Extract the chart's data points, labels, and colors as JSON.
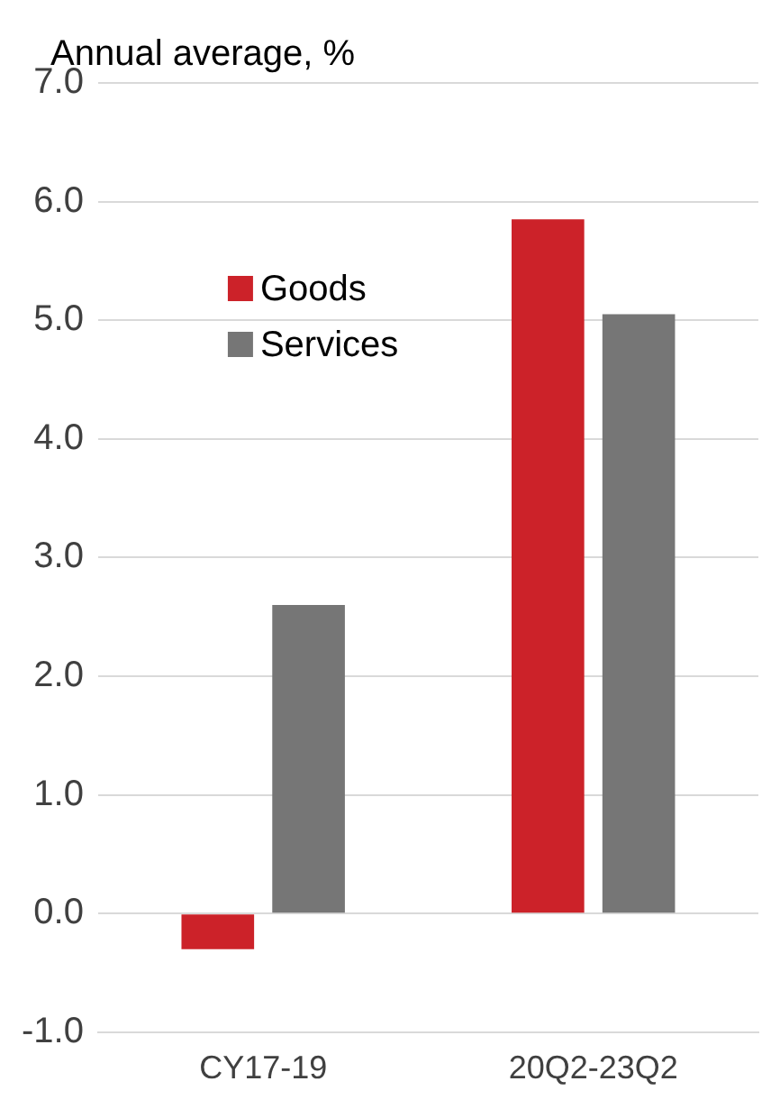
{
  "chart_data": {
    "type": "bar",
    "ylabel": "Annual average, %",
    "categories": [
      "CY17-19",
      "20Q2-23Q2"
    ],
    "series": [
      {
        "name": "Goods",
        "color": "#cc2229",
        "values": [
          -0.3,
          5.85
        ]
      },
      {
        "name": "Services",
        "color": "#767676",
        "values": [
          2.6,
          5.05
        ]
      }
    ],
    "ylim": [
      -1,
      7
    ],
    "yticks": [
      {
        "value": -1,
        "label": "-1.0"
      },
      {
        "value": 0,
        "label": "0.0"
      },
      {
        "value": 1,
        "label": "1.0"
      },
      {
        "value": 2,
        "label": "2.0"
      },
      {
        "value": 3,
        "label": "3.0"
      },
      {
        "value": 4,
        "label": "4.0"
      },
      {
        "value": 5,
        "label": "5.0"
      },
      {
        "value": 6,
        "label": "6.0"
      },
      {
        "value": 7,
        "label": "7.0"
      }
    ],
    "grid": "y",
    "legend": "top left"
  }
}
